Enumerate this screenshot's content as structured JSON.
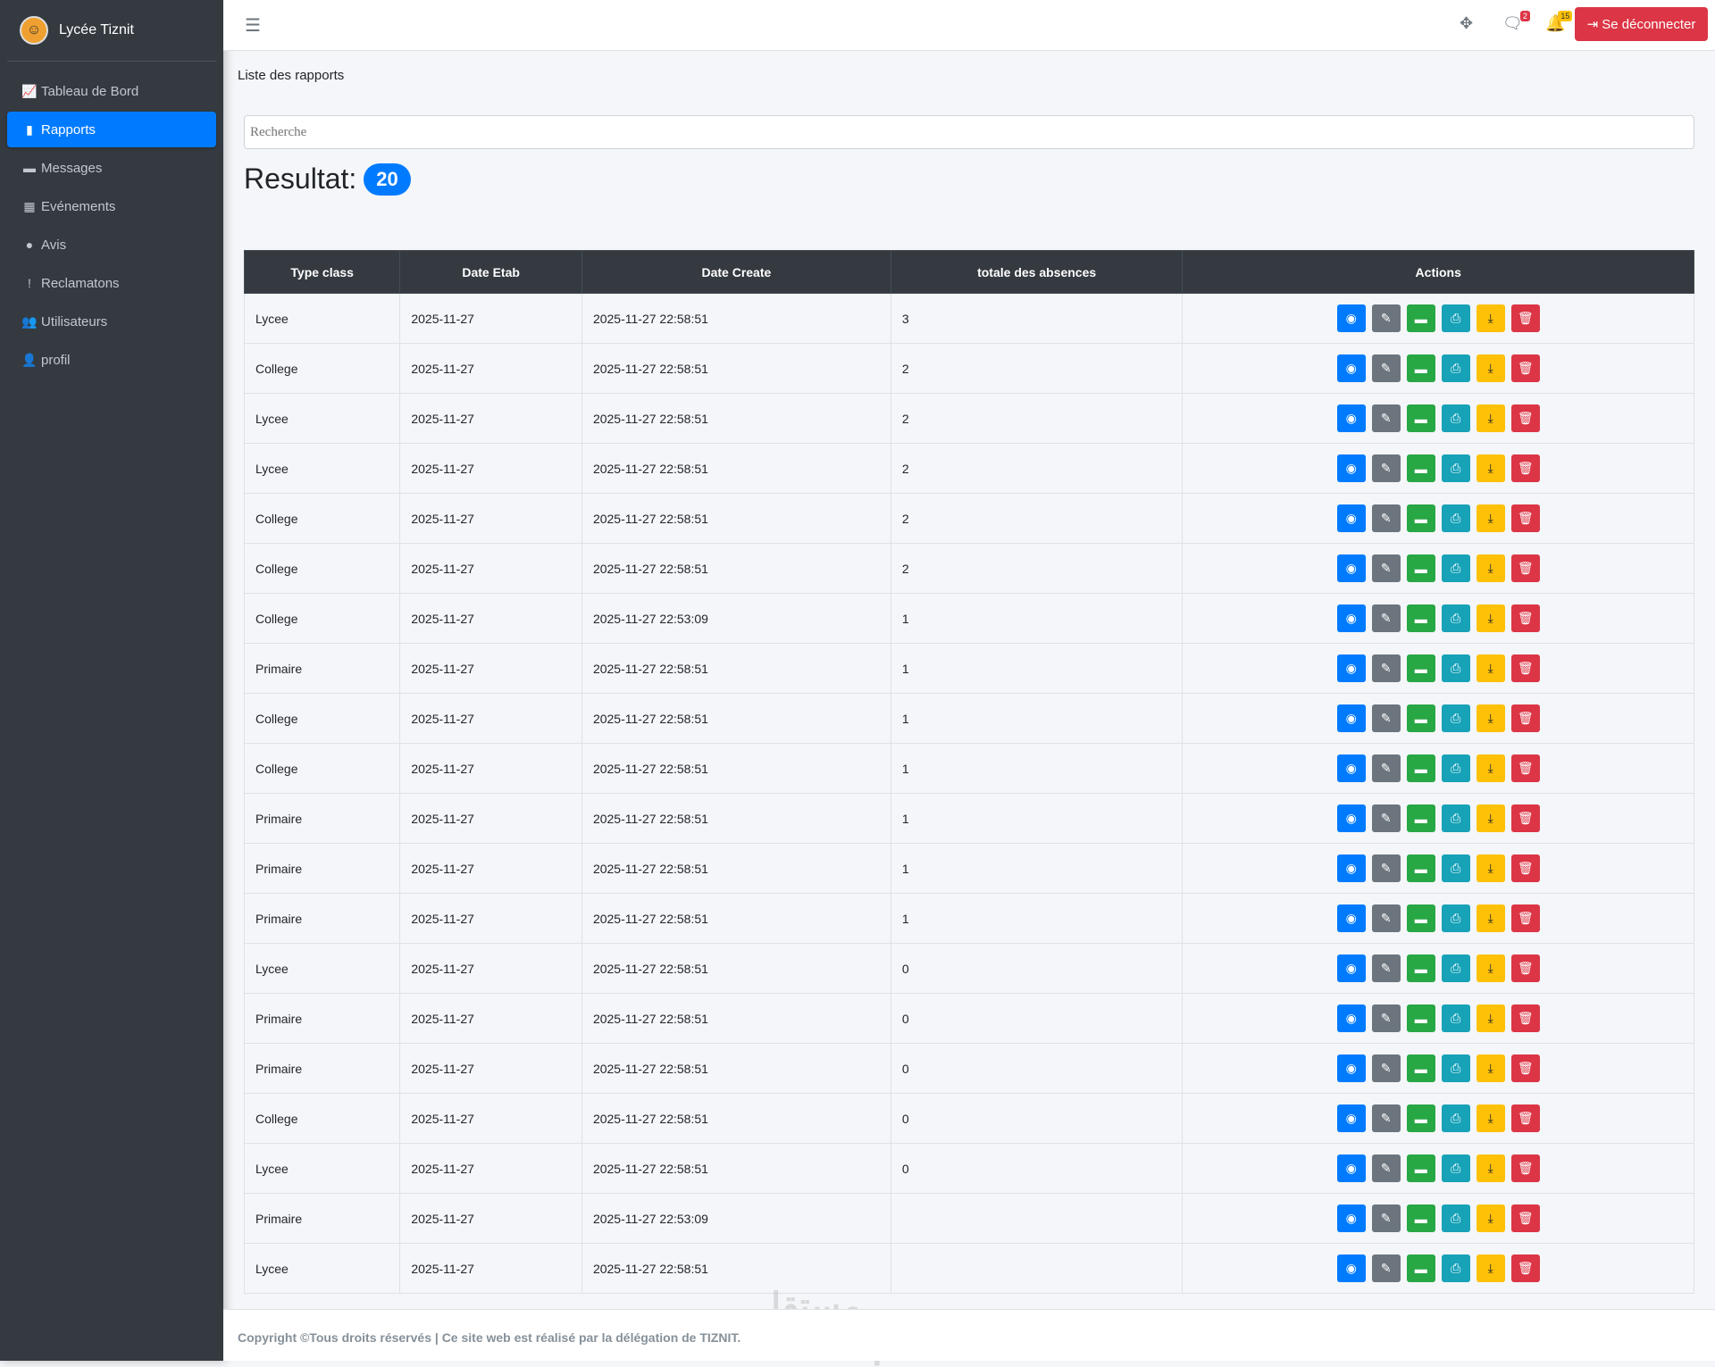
{
  "sidebar": {
    "brand": "Lycée Tiznit",
    "items": [
      {
        "label": "Tableau de Bord",
        "icon": "chart-line-icon",
        "glyph": "📈"
      },
      {
        "label": "Rapports",
        "icon": "file-icon",
        "glyph": "▮",
        "active": true
      },
      {
        "label": "Messages",
        "icon": "comment-icon",
        "glyph": "▬"
      },
      {
        "label": "Evénements",
        "icon": "calendar-icon",
        "glyph": "▦"
      },
      {
        "label": "Avis",
        "icon": "lightbulb-icon",
        "glyph": "●"
      },
      {
        "label": "Reclamatons",
        "icon": "exclamation-circle-icon",
        "glyph": "!"
      },
      {
        "label": "Utilisateurs",
        "icon": "users-icon",
        "glyph": "👥"
      },
      {
        "label": "profil",
        "icon": "user-icon",
        "glyph": "👤"
      }
    ]
  },
  "topbar": {
    "messages_count": "2",
    "notifications_count": "15",
    "logout": "Se déconnecter"
  },
  "page": {
    "title": "Liste des rapports",
    "search_placeholder": "Recherche",
    "result_label": "Resultat:",
    "result_count": "20"
  },
  "table": {
    "headers": [
      "Type class",
      "Date Etab",
      "Date Create",
      "totale des absences",
      "Actions"
    ],
    "rows": [
      [
        "Lycee",
        "2025-11-27",
        "2025-11-27 22:58:51",
        "3"
      ],
      [
        "College",
        "2025-11-27",
        "2025-11-27 22:58:51",
        "2"
      ],
      [
        "Lycee",
        "2025-11-27",
        "2025-11-27 22:58:51",
        "2"
      ],
      [
        "Lycee",
        "2025-11-27",
        "2025-11-27 22:58:51",
        "2"
      ],
      [
        "College",
        "2025-11-27",
        "2025-11-27 22:58:51",
        "2"
      ],
      [
        "College",
        "2025-11-27",
        "2025-11-27 22:58:51",
        "2"
      ],
      [
        "College",
        "2025-11-27",
        "2025-11-27 22:53:09",
        "1"
      ],
      [
        "Primaire",
        "2025-11-27",
        "2025-11-27 22:58:51",
        "1"
      ],
      [
        "College",
        "2025-11-27",
        "2025-11-27 22:58:51",
        "1"
      ],
      [
        "College",
        "2025-11-27",
        "2025-11-27 22:58:51",
        "1"
      ],
      [
        "Primaire",
        "2025-11-27",
        "2025-11-27 22:58:51",
        "1"
      ],
      [
        "Primaire",
        "2025-11-27",
        "2025-11-27 22:58:51",
        "1"
      ],
      [
        "Primaire",
        "2025-11-27",
        "2025-11-27 22:58:51",
        "1"
      ],
      [
        "Lycee",
        "2025-11-27",
        "2025-11-27 22:58:51",
        "0"
      ],
      [
        "Primaire",
        "2025-11-27",
        "2025-11-27 22:58:51",
        "0"
      ],
      [
        "Primaire",
        "2025-11-27",
        "2025-11-27 22:58:51",
        "0"
      ],
      [
        "College",
        "2025-11-27",
        "2025-11-27 22:58:51",
        "0"
      ],
      [
        "Lycee",
        "2025-11-27",
        "2025-11-27 22:58:51",
        "0"
      ],
      [
        "Primaire",
        "2025-11-27",
        "2025-11-27 22:53:09",
        ""
      ],
      [
        "Lycee",
        "2025-11-27",
        "2025-11-27 22:58:51",
        ""
      ]
    ],
    "actions": [
      {
        "name": "view",
        "icon": "eye-icon",
        "glyph": "◉",
        "color": "#007bff"
      },
      {
        "name": "edit",
        "icon": "edit-icon",
        "glyph": "✎",
        "color": "#6c757d"
      },
      {
        "name": "comment",
        "icon": "comment-icon",
        "glyph": "▬",
        "color": "#28a745"
      },
      {
        "name": "print",
        "icon": "print-icon",
        "glyph": "⎙",
        "color": "#17a2b8"
      },
      {
        "name": "download",
        "icon": "download-icon",
        "glyph": "⤓",
        "color": "#ffc107"
      },
      {
        "name": "delete",
        "icon": "trash-icon",
        "glyph": "🗑",
        "color": "#dc3545"
      }
    ]
  },
  "footer": {
    "text": "Copyright ©Tous droits réservés | Ce site web est réalisé par la délégation de TIZNIT."
  },
  "watermark": "mostaql.com"
}
